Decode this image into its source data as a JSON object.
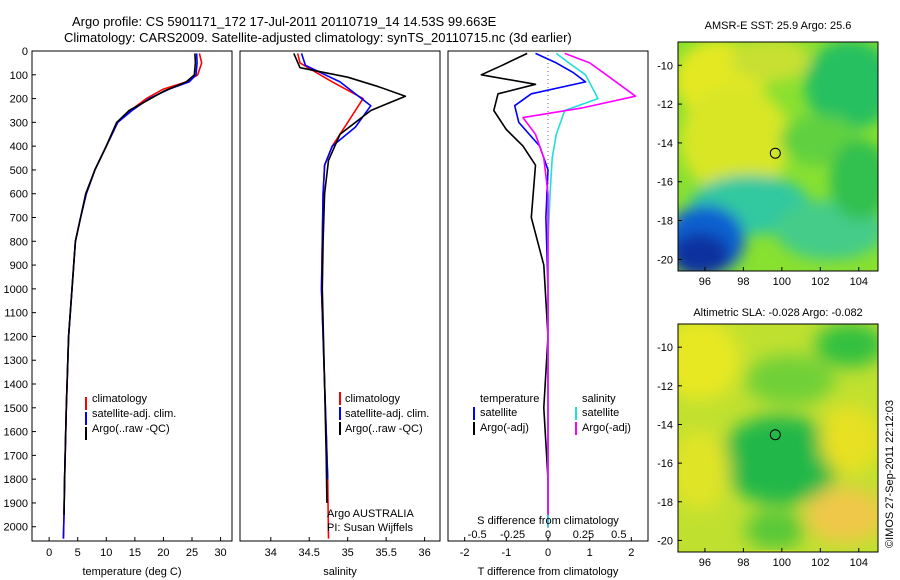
{
  "header": {
    "line1": "Argo profile: CS 5901171_172 17-Jul-2011 20110719_14 14.53S 99.663E",
    "line2": "Climatology: CARS2009. Satellite-adjusted climatology: synTS_20110715.nc (3d earlier)"
  },
  "colors": {
    "red": "#ff0000",
    "blue": "#0000ff",
    "black": "#000000",
    "cyan": "#22dddd",
    "magenta": "#ff00ff"
  },
  "depth_axis": {
    "range": [
      0,
      2060
    ],
    "ticks": [
      0,
      100,
      200,
      300,
      400,
      500,
      600,
      700,
      800,
      900,
      1000,
      1100,
      1200,
      1300,
      1400,
      1500,
      1600,
      1700,
      1800,
      1900,
      2000
    ]
  },
  "chart_data": [
    {
      "id": "temperature",
      "type": "line",
      "xlabel": "temperature (deg C)",
      "xlim": [
        -3,
        32
      ],
      "xticks": [
        0,
        5,
        10,
        15,
        20,
        25,
        30
      ],
      "ylim": [
        0,
        2060
      ],
      "legend": [
        "climatology",
        "satellite-adj. clim.",
        "Argo(..raw -QC)"
      ],
      "series": [
        {
          "name": "climatology",
          "color": "red",
          "x": [
            26.3,
            26.7,
            26.0,
            24.0,
            20.0,
            17.0,
            14.2,
            12.0,
            10.0,
            8.0,
            6.5,
            5.5,
            4.6,
            4.0,
            3.4,
            3.0,
            2.7,
            2.6,
            2.5
          ],
          "y": [
            10,
            50,
            100,
            130,
            160,
            200,
            250,
            300,
            400,
            500,
            600,
            700,
            800,
            1000,
            1200,
            1500,
            1800,
            1950,
            2050
          ]
        },
        {
          "name": "satellite-adj. clim.",
          "color": "blue",
          "x": [
            25.8,
            25.9,
            25.7,
            24.5,
            21.0,
            17.5,
            14.5,
            12.0,
            10.0,
            8.0,
            6.5,
            5.5,
            4.6,
            4.0,
            3.4,
            3.0,
            2.7,
            2.6,
            2.5
          ],
          "y": [
            10,
            50,
            100,
            130,
            160,
            200,
            250,
            300,
            400,
            500,
            600,
            700,
            800,
            1000,
            1200,
            1500,
            1800,
            1950,
            2050
          ]
        },
        {
          "name": "Argo(..raw -QC)",
          "color": "black",
          "x": [
            25.5,
            25.6,
            25.4,
            24.0,
            20.0,
            17.0,
            14.0,
            11.8,
            10.0,
            8.0,
            6.4,
            5.5,
            4.6,
            4.0,
            3.4,
            3.0,
            2.7,
            2.6
          ],
          "y": [
            10,
            50,
            100,
            130,
            170,
            210,
            250,
            300,
            400,
            500,
            600,
            700,
            800,
            1000,
            1200,
            1500,
            1800,
            1950
          ]
        }
      ]
    },
    {
      "id": "salinity",
      "type": "line",
      "xlabel": "salinity",
      "xlim": [
        33.6,
        36.2
      ],
      "xticks": [
        34,
        34.5,
        35,
        35.5,
        36
      ],
      "ylim": [
        0,
        2060
      ],
      "legend": [
        "climatology",
        "satellite-adj. clim.",
        "Argo(..raw -QC)"
      ],
      "annotation": [
        "Argo AUSTRALIA",
        "PI: Susan Wijffels"
      ],
      "series": [
        {
          "name": "climatology",
          "color": "red",
          "x": [
            34.35,
            34.38,
            34.8,
            35.2,
            35.0,
            34.8,
            34.7,
            34.68,
            34.67,
            34.66,
            34.68,
            34.7,
            34.72,
            34.74,
            34.75
          ],
          "y": [
            10,
            50,
            130,
            200,
            300,
            400,
            480,
            600,
            800,
            1000,
            1200,
            1400,
            1600,
            1800,
            2050
          ]
        },
        {
          "name": "satellite-adj. clim.",
          "color": "blue",
          "x": [
            34.4,
            34.45,
            34.9,
            35.3,
            35.1,
            34.8,
            34.7,
            34.68,
            34.67,
            34.66,
            34.68,
            34.7,
            34.72,
            34.74
          ],
          "y": [
            10,
            60,
            130,
            230,
            320,
            400,
            480,
            600,
            800,
            1000,
            1200,
            1400,
            1600,
            1800
          ]
        },
        {
          "name": "Argo(..raw -QC)",
          "color": "black",
          "x": [
            34.3,
            34.38,
            35.0,
            35.4,
            35.75,
            35.3,
            34.9,
            34.75,
            34.7,
            34.68,
            34.67,
            34.7,
            34.72,
            34.73
          ],
          "y": [
            10,
            70,
            110,
            150,
            190,
            250,
            350,
            460,
            600,
            800,
            1000,
            1400,
            1700,
            1900
          ]
        }
      ]
    },
    {
      "id": "differences",
      "type": "line",
      "xlabel": "T difference from climatology",
      "xlabel2": "S difference from climatology",
      "xlim": [
        -2.4,
        2.4
      ],
      "xticks": [
        -2,
        -1,
        0,
        1,
        2
      ],
      "xticks_top": [
        -0.5,
        -0.25,
        0,
        0.25,
        0.5
      ],
      "ylim": [
        0,
        2060
      ],
      "legend": {
        "temperature": "temperature",
        "salinity": "salinity",
        "sat": "satellite",
        "argo": "Argo(-adj)"
      },
      "series": [
        {
          "name": "T satellite",
          "color": "blue",
          "x": [
            -0.3,
            0.2,
            0.6,
            0.9,
            -0.4,
            -0.8,
            -0.7,
            -0.2,
            0.0,
            -0.05,
            0.0,
            0.0,
            0.0,
            0.0
          ],
          "y": [
            10,
            50,
            90,
            130,
            180,
            230,
            300,
            400,
            500,
            700,
            1000,
            1400,
            1800,
            2000
          ]
        },
        {
          "name": "T Argo(-adj)",
          "color": "black",
          "x": [
            -0.5,
            -1.1,
            -1.6,
            -0.3,
            -1.2,
            -1.3,
            -1.0,
            -0.6,
            -0.3,
            -0.4,
            -0.1,
            0.0,
            -0.1,
            0.0,
            0.0
          ],
          "y": [
            10,
            60,
            100,
            140,
            180,
            250,
            330,
            400,
            480,
            700,
            900,
            1200,
            1500,
            1800,
            1950
          ]
        },
        {
          "name": "S satellite",
          "color": "cyan",
          "x": [
            0.2,
            0.5,
            0.9,
            1.2,
            0.4,
            0.2,
            0.1,
            0.05,
            0.0,
            0.0,
            0.0,
            0.0
          ],
          "y": [
            10,
            50,
            100,
            200,
            250,
            350,
            450,
            600,
            800,
            1200,
            1600,
            2000
          ]
        },
        {
          "name": "S Argo(-adj)",
          "color": "magenta",
          "x": [
            0.4,
            1.0,
            1.4,
            2.1,
            0.8,
            -0.6,
            -0.3,
            -0.1,
            0.0,
            0.0,
            0.0,
            0.0
          ],
          "y": [
            10,
            50,
            100,
            190,
            240,
            280,
            350,
            450,
            600,
            1000,
            1500,
            1950
          ]
        }
      ]
    }
  ],
  "maps": [
    {
      "id": "sst",
      "title": "AMSR-E SST: 25.9 Argo: 25.6",
      "xticks": [
        96,
        98,
        100,
        102,
        104
      ],
      "yticks": [
        -10,
        -12,
        -14,
        -16,
        -18,
        -20
      ],
      "lon_range": [
        94.6,
        105.0
      ],
      "lat_range": [
        -8.8,
        -20.6
      ],
      "marker": {
        "lon": 99.66,
        "lat": -14.53
      }
    },
    {
      "id": "sla",
      "title": "Altimetric SLA: -0.028 Argo: -0.082",
      "xticks": [
        96,
        98,
        100,
        102,
        104
      ],
      "yticks": [
        -10,
        -12,
        -14,
        -16,
        -18,
        -20
      ],
      "lon_range": [
        94.6,
        105.0
      ],
      "lat_range": [
        -8.8,
        -20.6
      ],
      "marker": {
        "lon": 99.66,
        "lat": -14.53
      }
    }
  ],
  "side_stamp": "©IMOS 27-Sep-2011 22:12:03"
}
